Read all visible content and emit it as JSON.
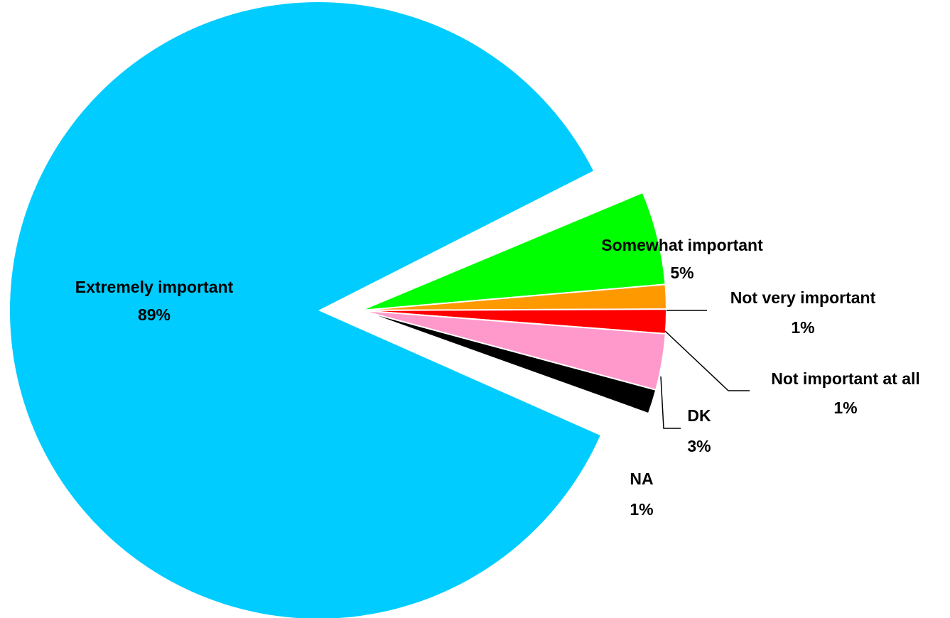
{
  "chart_data": {
    "type": "pie",
    "title": "",
    "slices": [
      {
        "label": "Extremely important",
        "value_label": "89%",
        "value": 89,
        "color": "#00CCFF"
      },
      {
        "label": "Somewhat important",
        "value_label": "5%",
        "value": 5,
        "color": "#00FF00"
      },
      {
        "label": "Not very important",
        "value_label": "1%",
        "value": 1.3,
        "color": "#FF9900"
      },
      {
        "label": "Not important at all",
        "value_label": "1%",
        "value": 1.3,
        "color": "#FF0000"
      },
      {
        "label": "DK",
        "value_label": "3%",
        "value": 3,
        "color": "#FF99CC"
      },
      {
        "label": "NA",
        "value_label": "1%",
        "value": 1.3,
        "color": "#000000"
      }
    ]
  }
}
